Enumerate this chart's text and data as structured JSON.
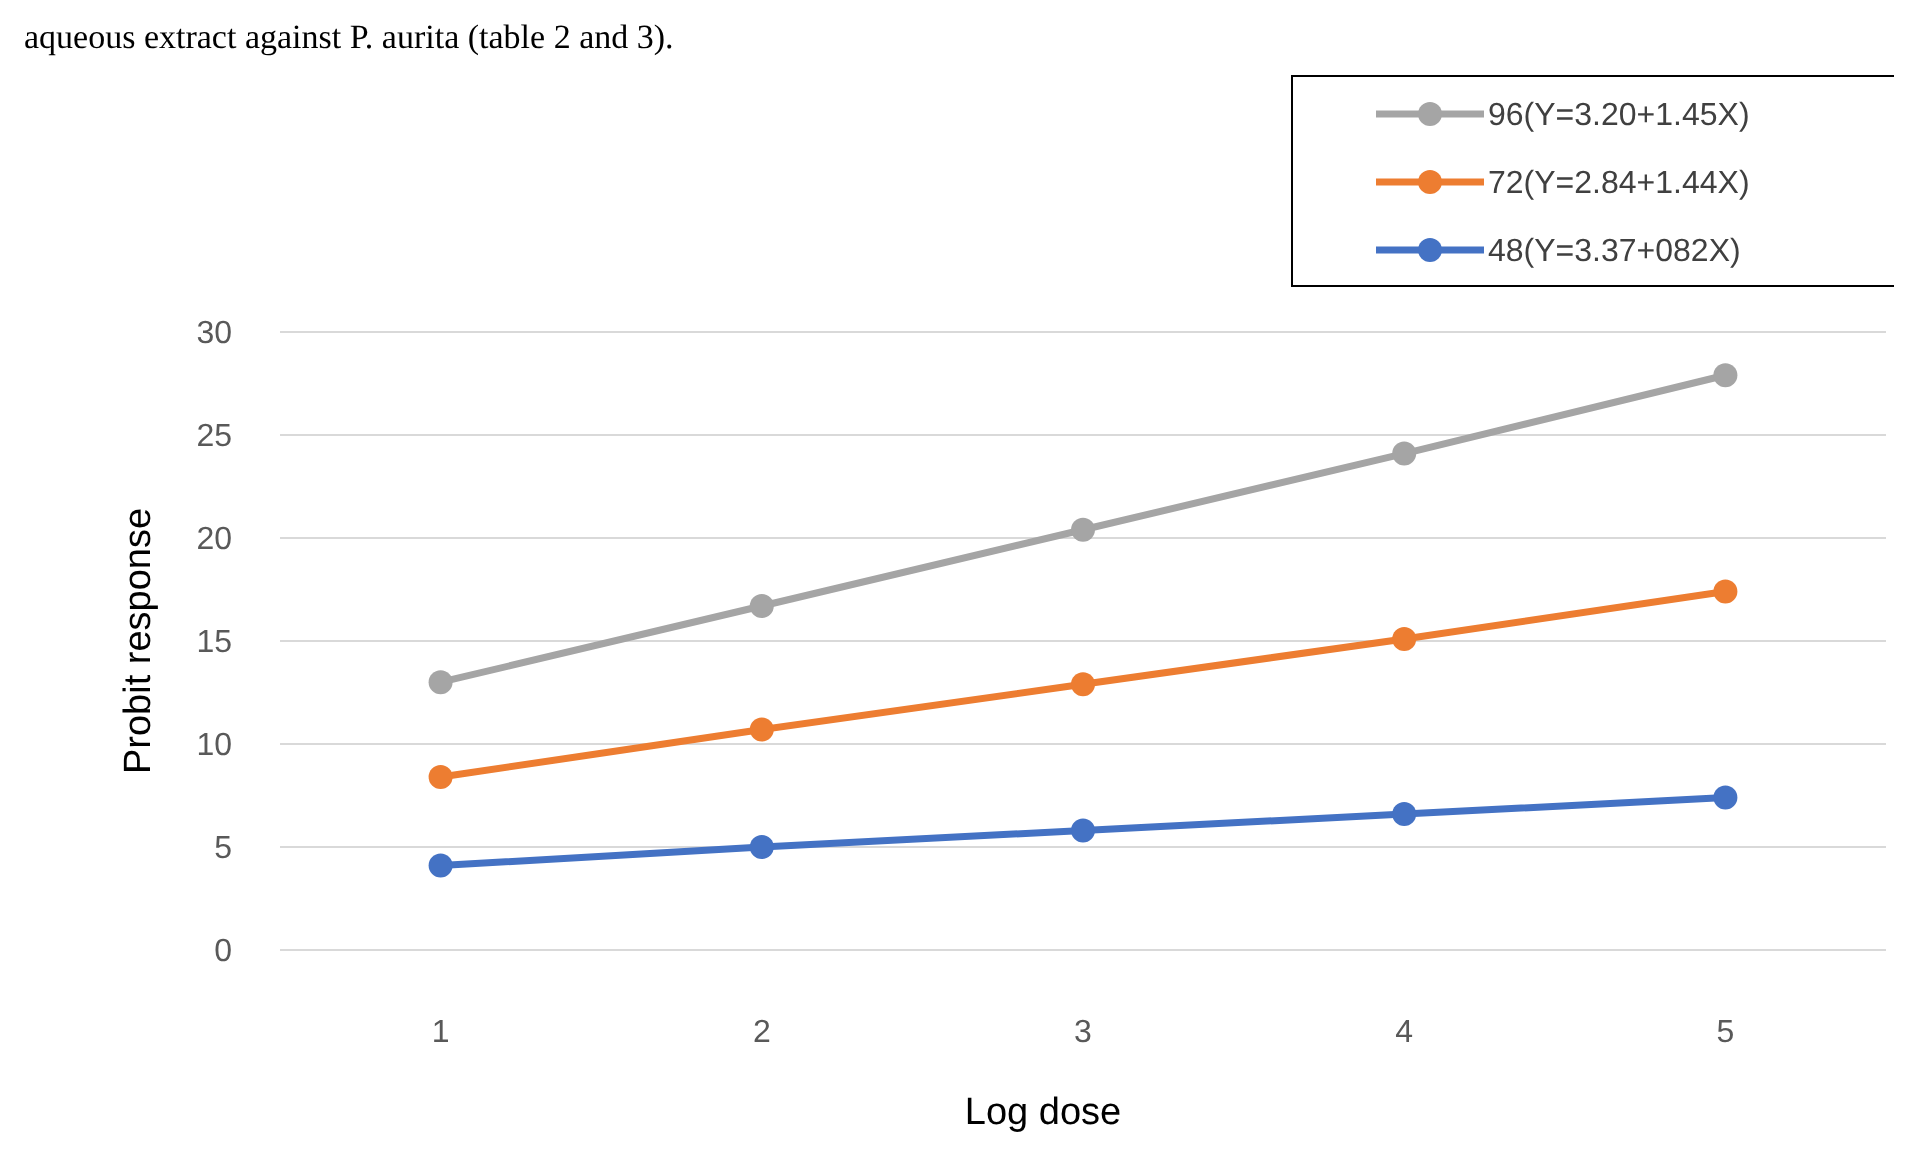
{
  "chart_data": {
    "type": "line",
    "xlabel": "Log dose",
    "ylabel": "Probit response",
    "annotations": [
      "aqueous extract against P. aurita (table 2 and 3)."
    ],
    "categories": [
      "1",
      "2",
      "3",
      "4",
      "5"
    ],
    "series": [
      {
        "name": "96(Y=3.20+1.45X)",
        "color": "#a5a5a5",
        "values": [
          13.0,
          16.7,
          20.4,
          24.1,
          27.9
        ]
      },
      {
        "name": "72(Y=2.84+1.44X)",
        "color": "#ed7d31",
        "values": [
          8.4,
          10.7,
          12.9,
          15.1,
          17.4
        ]
      },
      {
        "name": "48(Y=3.37+082X)",
        "color": "#4472c4",
        "values": [
          4.1,
          5.0,
          5.8,
          6.6,
          7.4
        ]
      }
    ],
    "ylim": [
      0,
      30
    ],
    "yticks": [
      0,
      5,
      10,
      15,
      20,
      25,
      30
    ],
    "grid": "y",
    "legend": "top right",
    "marker": "circle",
    "line_style": "solid"
  }
}
